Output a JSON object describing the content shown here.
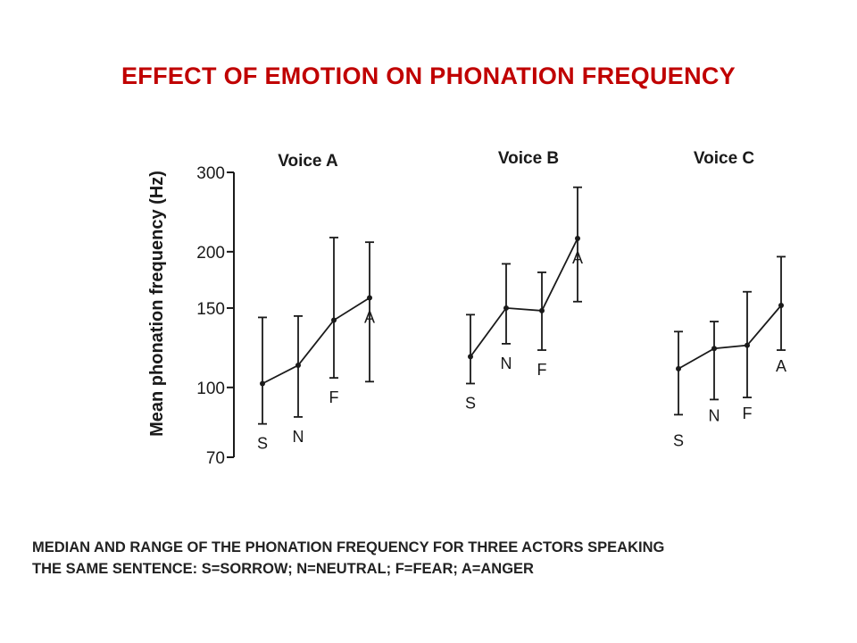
{
  "slide": {
    "title": "EFFECT OF EMOTION ON PHONATION FREQUENCY",
    "caption_lines": [
      "MEDIAN AND RANGE OF THE PHONATION FREQUENCY FOR THREE ACTORS SPEAKING",
      "THE SAME SENTENCE: S=SORROW; N=NEUTRAL; F=FEAR; A=ANGER"
    ]
  },
  "colors": {
    "title": "#c00000",
    "ink": "#1a1a1a",
    "caption": "#222222"
  },
  "chart_data": {
    "type": "scatter",
    "ylabel": "Mean phonation frequency (Hz)",
    "yscale": "log",
    "ylim": [
      70,
      300
    ],
    "yticks": [
      70,
      100,
      150,
      200,
      300
    ],
    "ytick_labels": [
      "70",
      "100",
      "150",
      "200",
      "300"
    ],
    "categories": [
      "S",
      "N",
      "F",
      "A"
    ],
    "series": [
      {
        "name": "Voice A",
        "median": [
          102,
          112,
          141,
          158
        ],
        "low": [
          83,
          86,
          105,
          103
        ],
        "high": [
          143,
          144,
          215,
          210
        ]
      },
      {
        "name": "Voice B",
        "median": [
          117,
          150,
          148,
          214
        ],
        "low": [
          102,
          125,
          121,
          155
        ],
        "high": [
          145,
          188,
          180,
          278
        ]
      },
      {
        "name": "Voice C",
        "median": [
          110,
          122,
          124,
          152
        ],
        "low": [
          87,
          94,
          95,
          121
        ],
        "high": [
          133,
          140,
          163,
          195
        ]
      }
    ]
  }
}
